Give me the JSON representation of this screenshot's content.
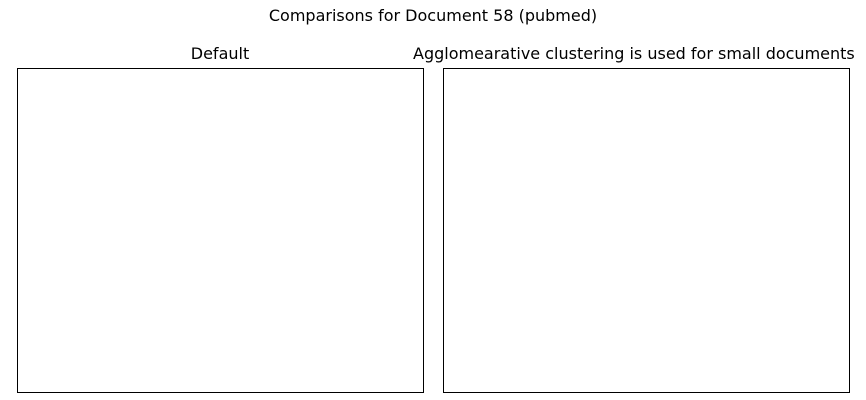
{
  "figure": {
    "suptitle": "Comparisons for Document 58 (pubmed)"
  },
  "chart_data": [
    {
      "type": "scatter",
      "title": "Default",
      "xlabel": "",
      "ylabel": "",
      "series": [],
      "grid": false
    },
    {
      "type": "scatter",
      "title": "Agglomearative clustering is used for small documents",
      "xlabel": "",
      "ylabel": "",
      "series": [],
      "grid": false
    }
  ]
}
